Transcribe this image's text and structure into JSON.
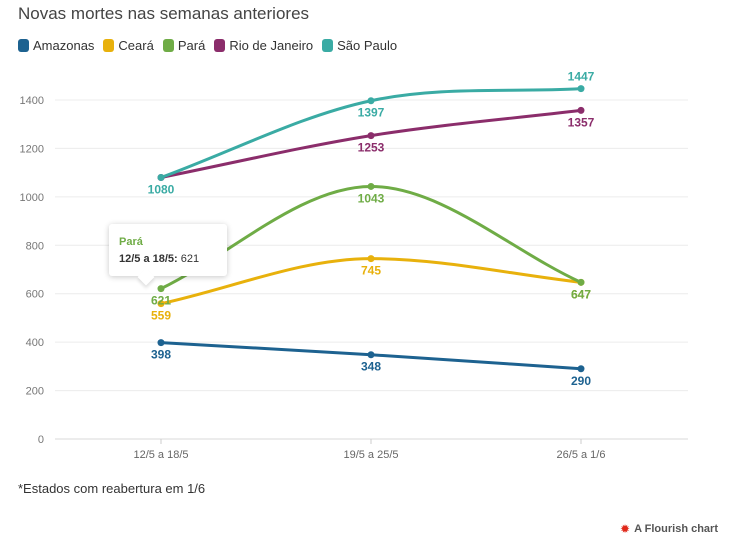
{
  "title": "Novas mortes nas semanas anteriores",
  "footnote": "*Estados com reabertura em 1/6",
  "credit": "A Flourish chart",
  "tooltip": {
    "series": "Pará",
    "label": "12/5 a 18/5:",
    "value": "621",
    "color": "#6fac46"
  },
  "chart_data": {
    "type": "line",
    "title": "Novas mortes nas semanas anteriores",
    "xlabel": "",
    "ylabel": "",
    "categories": [
      "12/5 a 18/5",
      "19/5 a 25/5",
      "26/5 a 1/6"
    ],
    "ylim": [
      0,
      1400
    ],
    "yticks": [
      0,
      200,
      400,
      600,
      800,
      1000,
      1200,
      1400
    ],
    "grid": true,
    "legend_position": "top-left",
    "series": [
      {
        "name": "Amazonas",
        "color": "#1d6290",
        "values": [
          398,
          348,
          290
        ]
      },
      {
        "name": "Ceará",
        "color": "#e8b10c",
        "values": [
          559,
          745,
          647
        ]
      },
      {
        "name": "Pará",
        "color": "#6fac46",
        "values": [
          621,
          1043,
          647
        ]
      },
      {
        "name": "Rio de Janeiro",
        "color": "#8b2d6b",
        "values": [
          1080,
          1253,
          1357
        ]
      },
      {
        "name": "São Paulo",
        "color": "#3aaba4",
        "values": [
          1080,
          1397,
          1447
        ]
      }
    ]
  }
}
